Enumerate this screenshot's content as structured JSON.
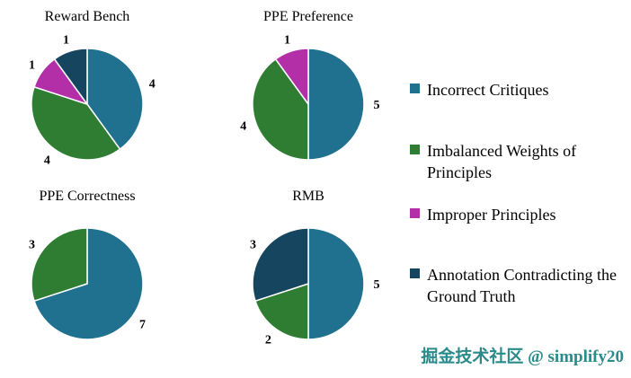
{
  "chart_data": [
    {
      "type": "pie",
      "title": "Reward Bench",
      "labels": [
        "Incorrect Critiques",
        "Imbalanced Weights of Principles",
        "Improper Principles",
        "Annotation Contradicting the Ground Truth"
      ],
      "values": [
        4,
        4,
        1,
        1
      ],
      "colors": [
        "#20708F",
        "#2E7D32",
        "#B32FA8",
        "#16455F"
      ],
      "start_angle_deg": 0,
      "direction": "clockwise",
      "value_labels": "outside"
    },
    {
      "type": "pie",
      "title": "PPE Preference",
      "labels": [
        "Incorrect Critiques",
        "Imbalanced Weights of Principles",
        "Improper Principles"
      ],
      "values": [
        5,
        4,
        1
      ],
      "colors": [
        "#20708F",
        "#2E7D32",
        "#B32FA8"
      ],
      "start_angle_deg": 0,
      "direction": "clockwise",
      "value_labels": "outside"
    },
    {
      "type": "pie",
      "title": "PPE Correctness",
      "labels": [
        "Incorrect Critiques",
        "Imbalanced Weights of Principles"
      ],
      "values": [
        7,
        3
      ],
      "colors": [
        "#20708F",
        "#2E7D32"
      ],
      "start_angle_deg": 0,
      "direction": "clockwise",
      "value_labels": "outside"
    },
    {
      "type": "pie",
      "title": "RMB",
      "labels": [
        "Incorrect Critiques",
        "Imbalanced Weights of Principles",
        "Annotation Contradicting the Ground Truth"
      ],
      "values": [
        5,
        2,
        3
      ],
      "colors": [
        "#20708F",
        "#2E7D32",
        "#16455F"
      ],
      "start_angle_deg": 0,
      "direction": "clockwise",
      "value_labels": "outside"
    }
  ],
  "legend": {
    "position": "right",
    "items": [
      {
        "label": "Incorrect Critiques",
        "color": "#20708F"
      },
      {
        "label": "Imbalanced Weights of Principles",
        "color": "#2E7D32"
      },
      {
        "label": "Improper Principles",
        "color": "#B32FA8"
      },
      {
        "label": "Annotation Contradicting the Ground Truth",
        "color": "#16455F"
      }
    ]
  },
  "watermark": {
    "text": "掘金技术社区 @ simplify20",
    "color": "#2B8A8A"
  }
}
